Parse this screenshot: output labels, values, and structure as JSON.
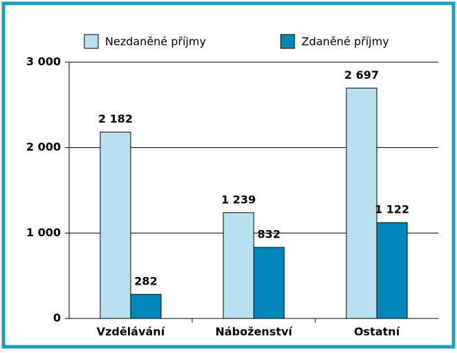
{
  "chart_data": {
    "type": "bar",
    "categories": [
      "Vzdělávání",
      "Náboženství",
      "Ostatní"
    ],
    "series": [
      {
        "name": "Nezdaněné příjmy",
        "color": "#b9e0f1",
        "values": [
          2182,
          1239,
          2697
        ],
        "value_labels": [
          "2 182",
          "1 239",
          "2 697"
        ]
      },
      {
        "name": "Zdaněné příjmy",
        "color": "#0086b9",
        "values": [
          282,
          832,
          1122
        ],
        "value_labels": [
          "282",
          "832",
          "1 122"
        ]
      }
    ],
    "ylim": [
      0,
      3000
    ],
    "yticks": [
      0,
      {
        "value": 1000,
        "label": "1 000"
      },
      {
        "value": 2000,
        "label": "2 000"
      },
      {
        "value": 3000,
        "label": "3 000"
      }
    ],
    "grid": true
  }
}
